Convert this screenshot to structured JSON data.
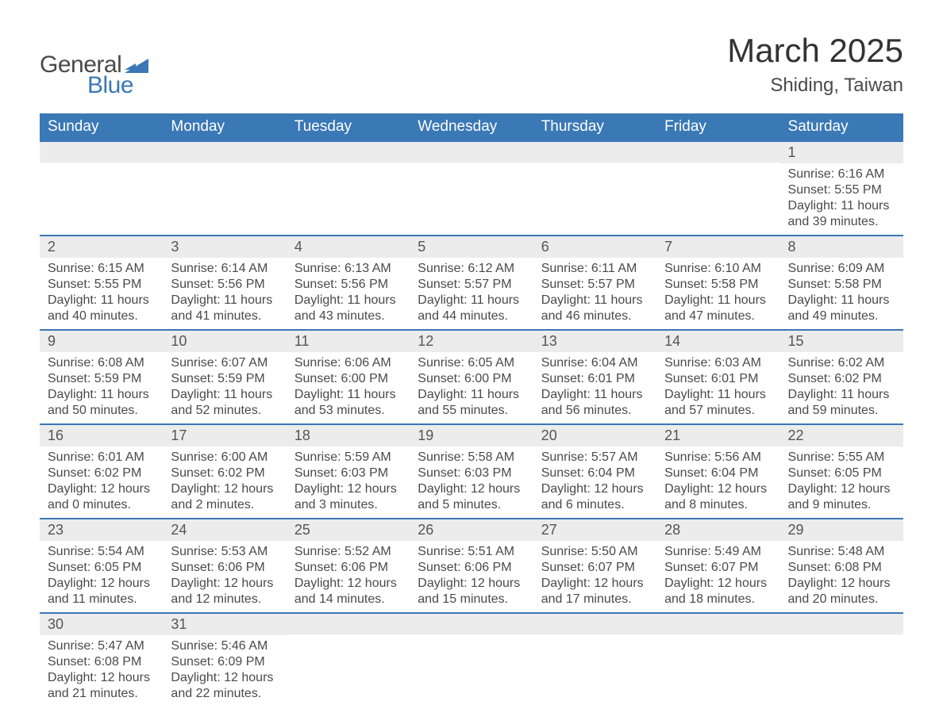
{
  "brand": {
    "word1": "General",
    "word2": "Blue",
    "accent_color": "#3a78b6"
  },
  "title": {
    "month": "March 2025",
    "location": "Shiding, Taiwan"
  },
  "weekdays": [
    "Sunday",
    "Monday",
    "Tuesday",
    "Wednesday",
    "Thursday",
    "Friday",
    "Saturday"
  ],
  "style": {
    "header_bg": "#3a78b6",
    "header_text": "#ffffff",
    "daynum_bg": "#ececec",
    "row_border": "#3a78b6",
    "body_text": "#4a4a4a",
    "page_bg": "#ffffff",
    "title_fontsize": 42,
    "location_fontsize": 24,
    "weekday_fontsize": 19,
    "daynum_fontsize": 18,
    "body_fontsize": 16
  },
  "weeks": [
    [
      {
        "empty": true
      },
      {
        "empty": true
      },
      {
        "empty": true
      },
      {
        "empty": true
      },
      {
        "empty": true
      },
      {
        "empty": true
      },
      {
        "n": "1",
        "sunrise": "6:16 AM",
        "sunset": "5:55 PM",
        "daylight": "11 hours and 39 minutes."
      }
    ],
    [
      {
        "n": "2",
        "sunrise": "6:15 AM",
        "sunset": "5:55 PM",
        "daylight": "11 hours and 40 minutes."
      },
      {
        "n": "3",
        "sunrise": "6:14 AM",
        "sunset": "5:56 PM",
        "daylight": "11 hours and 41 minutes."
      },
      {
        "n": "4",
        "sunrise": "6:13 AM",
        "sunset": "5:56 PM",
        "daylight": "11 hours and 43 minutes."
      },
      {
        "n": "5",
        "sunrise": "6:12 AM",
        "sunset": "5:57 PM",
        "daylight": "11 hours and 44 minutes."
      },
      {
        "n": "6",
        "sunrise": "6:11 AM",
        "sunset": "5:57 PM",
        "daylight": "11 hours and 46 minutes."
      },
      {
        "n": "7",
        "sunrise": "6:10 AM",
        "sunset": "5:58 PM",
        "daylight": "11 hours and 47 minutes."
      },
      {
        "n": "8",
        "sunrise": "6:09 AM",
        "sunset": "5:58 PM",
        "daylight": "11 hours and 49 minutes."
      }
    ],
    [
      {
        "n": "9",
        "sunrise": "6:08 AM",
        "sunset": "5:59 PM",
        "daylight": "11 hours and 50 minutes."
      },
      {
        "n": "10",
        "sunrise": "6:07 AM",
        "sunset": "5:59 PM",
        "daylight": "11 hours and 52 minutes."
      },
      {
        "n": "11",
        "sunrise": "6:06 AM",
        "sunset": "6:00 PM",
        "daylight": "11 hours and 53 minutes."
      },
      {
        "n": "12",
        "sunrise": "6:05 AM",
        "sunset": "6:00 PM",
        "daylight": "11 hours and 55 minutes."
      },
      {
        "n": "13",
        "sunrise": "6:04 AM",
        "sunset": "6:01 PM",
        "daylight": "11 hours and 56 minutes."
      },
      {
        "n": "14",
        "sunrise": "6:03 AM",
        "sunset": "6:01 PM",
        "daylight": "11 hours and 57 minutes."
      },
      {
        "n": "15",
        "sunrise": "6:02 AM",
        "sunset": "6:02 PM",
        "daylight": "11 hours and 59 minutes."
      }
    ],
    [
      {
        "n": "16",
        "sunrise": "6:01 AM",
        "sunset": "6:02 PM",
        "daylight": "12 hours and 0 minutes."
      },
      {
        "n": "17",
        "sunrise": "6:00 AM",
        "sunset": "6:02 PM",
        "daylight": "12 hours and 2 minutes."
      },
      {
        "n": "18",
        "sunrise": "5:59 AM",
        "sunset": "6:03 PM",
        "daylight": "12 hours and 3 minutes."
      },
      {
        "n": "19",
        "sunrise": "5:58 AM",
        "sunset": "6:03 PM",
        "daylight": "12 hours and 5 minutes."
      },
      {
        "n": "20",
        "sunrise": "5:57 AM",
        "sunset": "6:04 PM",
        "daylight": "12 hours and 6 minutes."
      },
      {
        "n": "21",
        "sunrise": "5:56 AM",
        "sunset": "6:04 PM",
        "daylight": "12 hours and 8 minutes."
      },
      {
        "n": "22",
        "sunrise": "5:55 AM",
        "sunset": "6:05 PM",
        "daylight": "12 hours and 9 minutes."
      }
    ],
    [
      {
        "n": "23",
        "sunrise": "5:54 AM",
        "sunset": "6:05 PM",
        "daylight": "12 hours and 11 minutes."
      },
      {
        "n": "24",
        "sunrise": "5:53 AM",
        "sunset": "6:06 PM",
        "daylight": "12 hours and 12 minutes."
      },
      {
        "n": "25",
        "sunrise": "5:52 AM",
        "sunset": "6:06 PM",
        "daylight": "12 hours and 14 minutes."
      },
      {
        "n": "26",
        "sunrise": "5:51 AM",
        "sunset": "6:06 PM",
        "daylight": "12 hours and 15 minutes."
      },
      {
        "n": "27",
        "sunrise": "5:50 AM",
        "sunset": "6:07 PM",
        "daylight": "12 hours and 17 minutes."
      },
      {
        "n": "28",
        "sunrise": "5:49 AM",
        "sunset": "6:07 PM",
        "daylight": "12 hours and 18 minutes."
      },
      {
        "n": "29",
        "sunrise": "5:48 AM",
        "sunset": "6:08 PM",
        "daylight": "12 hours and 20 minutes."
      }
    ],
    [
      {
        "n": "30",
        "sunrise": "5:47 AM",
        "sunset": "6:08 PM",
        "daylight": "12 hours and 21 minutes."
      },
      {
        "n": "31",
        "sunrise": "5:46 AM",
        "sunset": "6:09 PM",
        "daylight": "12 hours and 22 minutes."
      },
      {
        "empty": true
      },
      {
        "empty": true
      },
      {
        "empty": true
      },
      {
        "empty": true
      },
      {
        "empty": true
      }
    ]
  ],
  "labels": {
    "sunrise": "Sunrise: ",
    "sunset": "Sunset: ",
    "daylight": "Daylight: "
  }
}
